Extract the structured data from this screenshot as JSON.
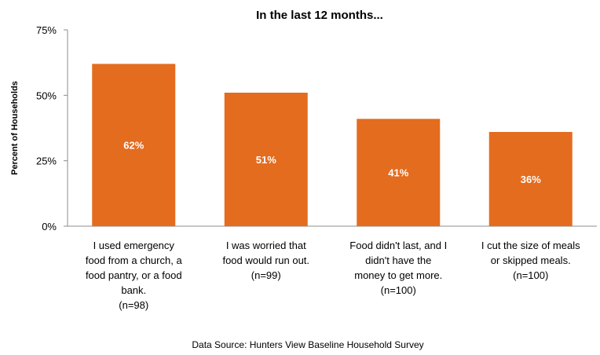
{
  "chart_data": {
    "type": "bar",
    "title": "In the last 12 months...",
    "ylabel": "Percent of Households",
    "xlabel": "",
    "ylim": [
      0,
      75
    ],
    "yticks": [
      0,
      25,
      50,
      75
    ],
    "ytick_labels": [
      "0%",
      "25%",
      "50%",
      "75%"
    ],
    "categories": [
      [
        "I used emergency",
        "food from a church, a",
        "food pantry, or a food",
        "bank.",
        "(n=98)"
      ],
      [
        "I was worried that",
        "food would run out.",
        "(n=99)"
      ],
      [
        "Food didn't last, and I",
        "didn't have the",
        "money to get more.",
        "(n=100)"
      ],
      [
        "I cut the size of meals",
        "or skipped meals.",
        "(n=100)"
      ]
    ],
    "values": [
      62,
      51,
      41,
      36
    ],
    "data_labels": [
      "62%",
      "51%",
      "41%",
      "36%"
    ],
    "bar_color": "#E46C1F",
    "data_label_color": "#ffffff",
    "grid": false,
    "legend": "none"
  },
  "source_note": "Data Source:  Hunters View Baseline Household Survey"
}
